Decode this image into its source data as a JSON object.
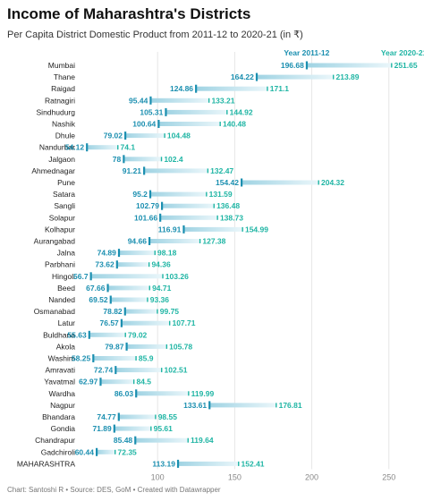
{
  "title": "Income of Maharashtra's Districts",
  "subtitle": "Per Capita District Domestic Product from 2011-12 to 2020-21 (in ₹)",
  "footer": "Chart: Santoshi R • Source: DES, GoM • Created with Datawrapper",
  "colors": {
    "start": "#1b8fb0",
    "end": "#1fb5a4",
    "bar": "#9fd3e3",
    "bar_faint": "#eaf6fa",
    "grid": "#e6e6e6"
  },
  "chart_data": {
    "type": "range-dot",
    "xlim": [
      50,
      260
    ],
    "xticks": [
      100,
      150,
      200,
      250
    ],
    "series": [
      {
        "name": "Year 2011-12"
      },
      {
        "name": "Year 2020-21"
      }
    ],
    "rows": [
      {
        "label": "Mumbai",
        "start": 196.68,
        "end": 251.65
      },
      {
        "label": "Thane",
        "start": 164.22,
        "end": 213.89
      },
      {
        "label": "Raigad",
        "start": 124.86,
        "end": 171.1
      },
      {
        "label": "Ratnagiri",
        "start": 95.44,
        "end": 133.21
      },
      {
        "label": "Sindhudurg",
        "start": 105.31,
        "end": 144.92
      },
      {
        "label": "Nashik",
        "start": 100.64,
        "end": 140.48
      },
      {
        "label": "Dhule",
        "start": 79.02,
        "end": 104.48
      },
      {
        "label": "Nandurbar",
        "start": 54.12,
        "end": 74.1
      },
      {
        "label": "Jalgaon",
        "start": 78,
        "end": 102.4
      },
      {
        "label": "Ahmednagar",
        "start": 91.21,
        "end": 132.47
      },
      {
        "label": "Pune",
        "start": 154.42,
        "end": 204.32
      },
      {
        "label": "Satara",
        "start": 95.2,
        "end": 131.59
      },
      {
        "label": "Sangli",
        "start": 102.79,
        "end": 136.48
      },
      {
        "label": "Solapur",
        "start": 101.66,
        "end": 138.73
      },
      {
        "label": "Kolhapur",
        "start": 116.91,
        "end": 154.99
      },
      {
        "label": "Aurangabad",
        "start": 94.66,
        "end": 127.38
      },
      {
        "label": "Jalna",
        "start": 74.89,
        "end": 98.18
      },
      {
        "label": "Parbhani",
        "start": 73.62,
        "end": 94.36
      },
      {
        "label": "Hingoli",
        "start": 56.7,
        "end": 103.26
      },
      {
        "label": "Beed",
        "start": 67.66,
        "end": 94.71
      },
      {
        "label": "Nanded",
        "start": 69.52,
        "end": 93.36
      },
      {
        "label": "Osmanabad",
        "start": 78.82,
        "end": 99.75
      },
      {
        "label": "Latur",
        "start": 76.57,
        "end": 107.71
      },
      {
        "label": "Buldhana",
        "start": 55.63,
        "end": 79.02
      },
      {
        "label": "Akola",
        "start": 79.87,
        "end": 105.78
      },
      {
        "label": "Washim",
        "start": 58.25,
        "end": 85.9
      },
      {
        "label": "Amravati",
        "start": 72.74,
        "end": 102.51
      },
      {
        "label": "Yavatmal",
        "start": 62.97,
        "end": 84.5
      },
      {
        "label": "Wardha",
        "start": 86.03,
        "end": 119.99
      },
      {
        "label": "Nagpur",
        "start": 133.61,
        "end": 176.81
      },
      {
        "label": "Bhandara",
        "start": 74.77,
        "end": 98.55
      },
      {
        "label": "Gondia",
        "start": 71.89,
        "end": 95.61
      },
      {
        "label": "Chandrapur",
        "start": 85.48,
        "end": 119.64
      },
      {
        "label": "Gadchiroli",
        "start": 60.44,
        "end": 72.35
      },
      {
        "label": "MAHARASHTRA",
        "start": 113.19,
        "end": 152.41
      }
    ]
  }
}
